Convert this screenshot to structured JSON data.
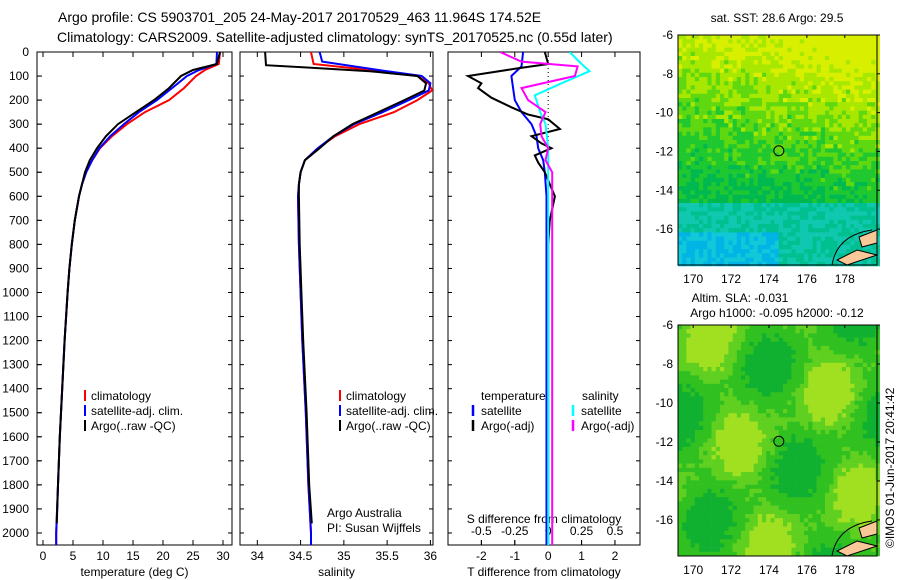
{
  "title": {
    "line1": "Argo profile: CS 5903701_205 24-May-2017 20170529_463 11.964S 174.52E",
    "line2": "Climatology: CARS2009. Satellite-adjusted climatology: synTS_20170525.nc (0.55d later)"
  },
  "credit": "Argo Australia",
  "pi": "PI: Susan Wijffels",
  "stamp": "©IMOS 01-Jun-2017 20:41:42",
  "colors": {
    "clim": "#ff0000",
    "sat": "#0000ff",
    "argo": "#000000",
    "sat_s": "#00ffff",
    "argo_s": "#ff00ff"
  },
  "chart_data": [
    {
      "type": "line",
      "name": "temperature",
      "xlabel": "temperature (deg C)",
      "ylabel": "",
      "xlim": [
        -1,
        31.5
      ],
      "ylim": [
        2050,
        0
      ],
      "xticks": [
        0,
        5,
        10,
        15,
        20,
        25,
        30
      ],
      "yticks": [
        0,
        100,
        200,
        300,
        400,
        500,
        600,
        700,
        800,
        900,
        1000,
        1100,
        1200,
        1300,
        1400,
        1500,
        1600,
        1700,
        1800,
        1900,
        2000
      ],
      "legend": [
        "climatology",
        "satellite-adj. clim.",
        "Argo(..raw -QC)"
      ],
      "series": [
        {
          "name": "climatology",
          "color": "clim",
          "depth": [
            0,
            50,
            75,
            100,
            150,
            200,
            250,
            300,
            350,
            400,
            450,
            500,
            550,
            600,
            700,
            800,
            900,
            1000,
            1200,
            1400,
            1600,
            1800,
            2000,
            2050
          ],
          "values": [
            29.5,
            29.3,
            27,
            25.5,
            23.5,
            21,
            17,
            14,
            11.5,
            9.5,
            8.2,
            7.2,
            6.5,
            6,
            5.3,
            4.8,
            4.4,
            4.1,
            3.6,
            3.2,
            2.8,
            2.5,
            2.2,
            2.2
          ]
        },
        {
          "name": "satellite-adj. clim.",
          "color": "sat",
          "depth": [
            0,
            50,
            75,
            100,
            150,
            200,
            250,
            300,
            350,
            400,
            450,
            500,
            550,
            600,
            700,
            800,
            900,
            1000,
            1200,
            1400,
            1600,
            1800,
            2000,
            2050
          ],
          "values": [
            29,
            28.9,
            26,
            24,
            21.5,
            19,
            16,
            13.5,
            11.2,
            9.4,
            8.2,
            7.2,
            6.5,
            6,
            5.3,
            4.8,
            4.4,
            4.1,
            3.6,
            3.2,
            2.8,
            2.5,
            2.2,
            2.2
          ]
        },
        {
          "name": "Argo(..raw -QC)",
          "color": "argo",
          "depth": [
            0,
            50,
            75,
            100,
            150,
            200,
            250,
            300,
            350,
            400,
            450,
            500,
            550,
            600,
            700,
            800,
            900,
            1000,
            1200,
            1400,
            1600,
            1800,
            1960
          ],
          "values": [
            29.5,
            29,
            25,
            23,
            21,
            18.5,
            15.5,
            12.5,
            10.5,
            9,
            7.8,
            7,
            6.5,
            6,
            5.3,
            4.8,
            4.4,
            4.1,
            3.6,
            3.2,
            2.8,
            2.5,
            2.3
          ]
        }
      ]
    },
    {
      "type": "line",
      "name": "salinity",
      "xlabel": "salinity",
      "xlim": [
        33.8,
        36.03
      ],
      "ylim": [
        2050,
        0
      ],
      "xticks": [
        34,
        34.5,
        35,
        35.5,
        36
      ],
      "legend": [
        "climatology",
        "satellite-adj. clim.",
        "Argo(..raw -QC)"
      ],
      "series": [
        {
          "name": "climatology",
          "color": "clim",
          "depth": [
            0,
            50,
            75,
            100,
            130,
            160,
            200,
            250,
            300,
            350,
            400,
            450,
            500,
            550,
            600,
            800,
            1000,
            1200,
            1500,
            1800,
            2000,
            2050
          ],
          "values": [
            34.62,
            34.65,
            35.3,
            35.85,
            35.98,
            36.02,
            35.85,
            35.58,
            35.18,
            34.9,
            34.7,
            34.55,
            34.5,
            34.48,
            34.47,
            34.48,
            34.5,
            34.52,
            34.56,
            34.59,
            34.62,
            34.62
          ]
        },
        {
          "name": "satellite-adj. clim.",
          "color": "sat",
          "depth": [
            0,
            40,
            75,
            100,
            130,
            160,
            200,
            250,
            300,
            350,
            400,
            450,
            500,
            550,
            600,
            800,
            1000,
            1200,
            1500,
            1800,
            2000,
            2050
          ],
          "values": [
            34.72,
            34.75,
            35.4,
            35.9,
            36,
            35.98,
            35.75,
            35.45,
            35.12,
            34.88,
            34.7,
            34.55,
            34.5,
            34.48,
            34.47,
            34.48,
            34.5,
            34.52,
            34.56,
            34.59,
            34.62,
            34.62
          ]
        },
        {
          "name": "Argo(..raw -QC)",
          "color": "argo",
          "depth": [
            0,
            55,
            65,
            80,
            100,
            130,
            160,
            200,
            250,
            300,
            350,
            400,
            450,
            500,
            550,
            600,
            800,
            1000,
            1200,
            1500,
            1800,
            1960
          ],
          "values": [
            34.09,
            34.1,
            34.6,
            35.3,
            35.85,
            35.95,
            35.93,
            35.7,
            35.4,
            35.1,
            34.88,
            34.72,
            34.55,
            34.5,
            34.48,
            34.48,
            34.49,
            34.51,
            34.53,
            34.57,
            34.6,
            34.63
          ]
        }
      ]
    },
    {
      "type": "line",
      "name": "differences",
      "xlabel": "T difference from climatology",
      "xlabel2": "S difference from climatology",
      "xlim": [
        -3,
        2.75
      ],
      "ylim": [
        2050,
        0
      ],
      "xticks": [
        -2,
        -1,
        0,
        1,
        2
      ],
      "xticks2": [
        -0.5,
        -0.25,
        0,
        0.25,
        0.5
      ],
      "xtick2_labels": [
        "-0.5",
        "-0.25",
        "0",
        "0.25",
        "0.5"
      ],
      "legend_headers": [
        "temperature",
        "salinity"
      ],
      "legend": [
        "satellite",
        "Argo(-adj)",
        "satellite",
        "Argo(-adj)"
      ],
      "series": [
        {
          "name": "T satellite",
          "color": "sat",
          "unit": "T",
          "depth": [
            0,
            60,
            100,
            150,
            200,
            250,
            300,
            350,
            400,
            450,
            500,
            600,
            800,
            1000,
            1500,
            2050
          ],
          "values": [
            -0.75,
            -0.8,
            -1.1,
            -1.05,
            -1.0,
            -0.8,
            -0.5,
            -0.35,
            -0.3,
            -0.15,
            -0.1,
            -0.05,
            -0.05,
            -0.05,
            -0.05,
            -0.05
          ]
        },
        {
          "name": "T Argo(-adj)",
          "color": "argo",
          "unit": "T",
          "depth": [
            0,
            50,
            70,
            100,
            130,
            150,
            190,
            230,
            260,
            280,
            320,
            350,
            380,
            400,
            430,
            460,
            500,
            550,
            600,
            700,
            800,
            1000,
            1500,
            2050
          ],
          "values": [
            -0.1,
            0,
            -1.0,
            -2.4,
            -2.0,
            -2.1,
            -1.7,
            -1.1,
            -0.6,
            0,
            0.35,
            -0.5,
            -0.2,
            0.1,
            -0.4,
            -0.3,
            -0.1,
            0.05,
            0.2,
            0.05,
            0,
            0,
            0,
            0
          ]
        },
        {
          "name": "S satellite",
          "color": "sat_s",
          "unit": "S",
          "depth": [
            0,
            50,
            80,
            130,
            180,
            250,
            300,
            400,
            500,
            600,
            800,
            1000,
            1500,
            2050
          ],
          "values": [
            0.16,
            0.25,
            0.31,
            0.1,
            -0.1,
            -0.06,
            -0.02,
            0,
            0,
            0,
            0,
            0,
            0,
            0
          ]
        },
        {
          "name": "S Argo(-adj)",
          "color": "argo_s",
          "unit": "S",
          "depth": [
            0,
            40,
            60,
            100,
            150,
            200,
            250,
            300,
            350,
            400,
            450,
            500,
            600,
            800,
            1000,
            1500,
            2050
          ],
          "values": [
            -0.36,
            -0.2,
            0.22,
            0.2,
            -0.2,
            -0.15,
            -0.02,
            -0.06,
            -0.05,
            0,
            -0.02,
            0.03,
            0.03,
            0.03,
            0.03,
            0.03,
            0.03
          ]
        }
      ]
    },
    {
      "type": "heatmap",
      "name": "sst-map",
      "title": "sat. SST: 28.6 Argo: 29.5",
      "xlim": [
        169.2,
        179.7
      ],
      "ylim": [
        -17.85,
        -6
      ],
      "xticks": [
        170,
        172,
        174,
        176,
        178
      ],
      "yticks": [
        -6,
        -8,
        -10,
        -12,
        -14,
        -16
      ],
      "marker": {
        "lon": 174.52,
        "lat": -11.964
      }
    },
    {
      "type": "heatmap",
      "name": "sla-map",
      "title": "Altim. SLA: -0.031",
      "subtitle": "Argo h1000: -0.095 h2000: -0.12",
      "xlim": [
        169.2,
        179.7
      ],
      "ylim": [
        -17.85,
        -6
      ],
      "xticks": [
        170,
        172,
        174,
        176,
        178
      ],
      "yticks": [
        -6,
        -8,
        -10,
        -12,
        -14,
        -16
      ],
      "marker": {
        "lon": 174.52,
        "lat": -11.964
      }
    }
  ]
}
